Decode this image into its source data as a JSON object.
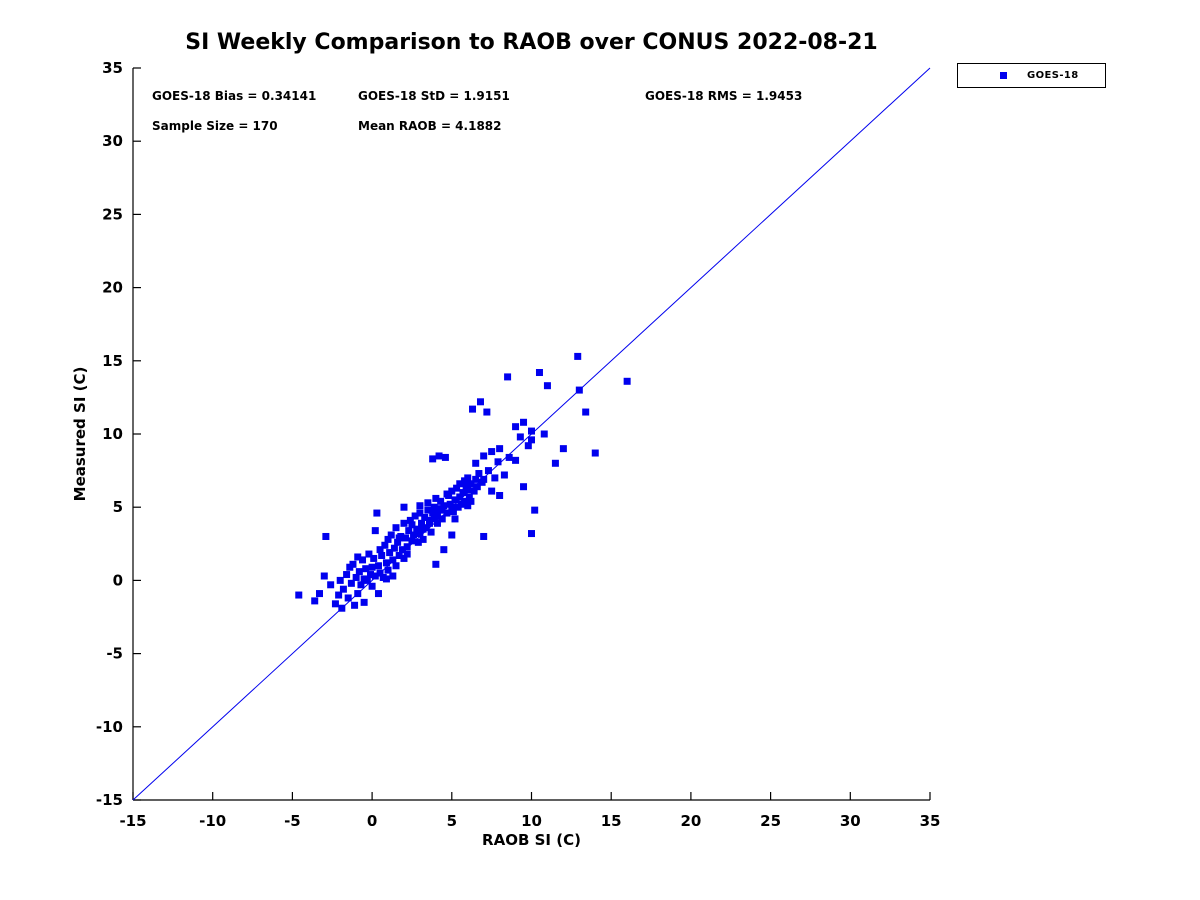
{
  "chart_data": {
    "type": "scatter",
    "title": "SI Weekly Comparison to RAOB over CONUS 2022-08-21",
    "xlabel": "RAOB SI (C)",
    "ylabel": "Measured SI (C)",
    "xlim": [
      -15,
      35
    ],
    "ylim": [
      -15,
      35
    ],
    "tick_step": 5,
    "grid": false,
    "axis_color": "#000000",
    "annotations": {
      "row1": [
        "GOES-18 Bias = 0.34141",
        "GOES-18 StD = 1.9151",
        "GOES-18 RMS = 1.9453"
      ],
      "row2": [
        "Sample Size = 170",
        "Mean RAOB = 4.1882"
      ]
    },
    "stats": {
      "bias": 0.34141,
      "std": 1.9151,
      "rms": 1.9453,
      "sample_size": 170,
      "mean_raob": 4.1882
    },
    "legend": {
      "position": "top-right-outside",
      "entries": [
        {
          "label": "GOES-18",
          "marker": "square",
          "color": "#0000EE"
        }
      ]
    },
    "reference_line": {
      "from": [
        -15,
        -15
      ],
      "to": [
        35,
        35
      ],
      "color": "#0000EE"
    },
    "series": [
      {
        "name": "GOES-18",
        "marker": "square",
        "color": "#0000EE",
        "points": [
          [
            -4.6,
            -1.0
          ],
          [
            -3.6,
            -1.4
          ],
          [
            -3.3,
            -0.9
          ],
          [
            -3.0,
            0.3
          ],
          [
            -2.9,
            3.0
          ],
          [
            -2.6,
            -0.3
          ],
          [
            -2.3,
            -1.6
          ],
          [
            -2.1,
            -1.0
          ],
          [
            -2.0,
            0.0
          ],
          [
            -1.9,
            -1.9
          ],
          [
            -1.8,
            -0.6
          ],
          [
            -1.6,
            0.4
          ],
          [
            -1.5,
            -1.2
          ],
          [
            -1.4,
            0.9
          ],
          [
            -1.3,
            -0.2
          ],
          [
            -1.2,
            1.1
          ],
          [
            -1.1,
            -1.7
          ],
          [
            -1.0,
            0.2
          ],
          [
            -0.9,
            -0.9
          ],
          [
            -0.9,
            1.6
          ],
          [
            -0.8,
            0.6
          ],
          [
            -0.7,
            -0.3
          ],
          [
            -0.6,
            1.4
          ],
          [
            -0.5,
            0.1
          ],
          [
            -0.5,
            -1.5
          ],
          [
            -0.4,
            0.8
          ],
          [
            -0.3,
            0.0
          ],
          [
            -0.2,
            1.8
          ],
          [
            -0.1,
            0.4
          ],
          [
            0.0,
            0.9
          ],
          [
            0.0,
            -0.4
          ],
          [
            0.1,
            1.5
          ],
          [
            0.2,
            0.3
          ],
          [
            0.2,
            3.4
          ],
          [
            0.3,
            4.6
          ],
          [
            0.4,
            1.0
          ],
          [
            0.4,
            -0.9
          ],
          [
            0.5,
            0.5
          ],
          [
            0.5,
            2.1
          ],
          [
            0.6,
            1.7
          ],
          [
            0.7,
            0.2
          ],
          [
            0.8,
            2.4
          ],
          [
            0.9,
            1.2
          ],
          [
            0.9,
            0.1
          ],
          [
            1.0,
            0.7
          ],
          [
            1.0,
            2.8
          ],
          [
            1.1,
            1.9
          ],
          [
            1.2,
            3.1
          ],
          [
            1.3,
            1.4
          ],
          [
            1.3,
            0.3
          ],
          [
            1.4,
            2.2
          ],
          [
            1.5,
            1.0
          ],
          [
            1.5,
            3.6
          ],
          [
            1.6,
            2.6
          ],
          [
            1.7,
            1.7
          ],
          [
            1.7,
            2.9
          ],
          [
            1.8,
            3.0
          ],
          [
            1.9,
            2.1
          ],
          [
            2.0,
            1.5
          ],
          [
            2.0,
            3.9
          ],
          [
            2.0,
            5.0
          ],
          [
            2.1,
            2.9
          ],
          [
            2.2,
            2.3
          ],
          [
            2.2,
            1.8
          ],
          [
            2.3,
            3.4
          ],
          [
            2.4,
            4.1
          ],
          [
            2.5,
            2.7
          ],
          [
            2.5,
            3.8
          ],
          [
            2.6,
            3.1
          ],
          [
            2.7,
            4.4
          ],
          [
            2.8,
            3.5
          ],
          [
            2.9,
            2.6
          ],
          [
            2.9,
            3.3
          ],
          [
            3.0,
            3.2
          ],
          [
            3.0,
            4.6
          ],
          [
            3.0,
            5.1
          ],
          [
            3.1,
            3.9
          ],
          [
            3.2,
            2.8
          ],
          [
            3.2,
            3.5
          ],
          [
            3.3,
            4.3
          ],
          [
            3.4,
            3.6
          ],
          [
            3.5,
            4.8
          ],
          [
            3.5,
            5.3
          ],
          [
            3.6,
            4.1
          ],
          [
            3.6,
            3.9
          ],
          [
            3.7,
            3.3
          ],
          [
            3.8,
            8.3
          ],
          [
            3.8,
            4.6
          ],
          [
            3.9,
            5.0
          ],
          [
            3.9,
            4.2
          ],
          [
            4.0,
            1.1
          ],
          [
            4.0,
            4.4
          ],
          [
            4.0,
            5.6
          ],
          [
            4.1,
            3.9
          ],
          [
            4.1,
            4.5
          ],
          [
            4.2,
            8.5
          ],
          [
            4.2,
            4.9
          ],
          [
            4.3,
            5.4
          ],
          [
            4.4,
            4.2
          ],
          [
            4.4,
            4.8
          ],
          [
            4.5,
            2.1
          ],
          [
            4.5,
            5.1
          ],
          [
            4.6,
            8.4
          ],
          [
            4.7,
            4.6
          ],
          [
            4.7,
            5.9
          ],
          [
            4.8,
            5.8
          ],
          [
            4.9,
            5.2
          ],
          [
            5.0,
            3.1
          ],
          [
            5.0,
            5.0
          ],
          [
            5.0,
            6.1
          ],
          [
            5.1,
            4.7
          ],
          [
            5.2,
            5.5
          ],
          [
            5.2,
            4.2
          ],
          [
            5.3,
            6.3
          ],
          [
            5.4,
            5.0
          ],
          [
            5.5,
            5.7
          ],
          [
            5.5,
            6.6
          ],
          [
            5.6,
            5.2
          ],
          [
            5.7,
            6.0
          ],
          [
            5.8,
            5.4
          ],
          [
            5.8,
            6.8
          ],
          [
            5.9,
            6.4
          ],
          [
            6.0,
            5.1
          ],
          [
            6.0,
            6.2
          ],
          [
            6.0,
            7.0
          ],
          [
            6.1,
            5.7
          ],
          [
            6.2,
            6.6
          ],
          [
            6.2,
            5.4
          ],
          [
            6.3,
            11.7
          ],
          [
            6.4,
            6.1
          ],
          [
            6.5,
            6.9
          ],
          [
            6.5,
            8.0
          ],
          [
            6.6,
            6.4
          ],
          [
            6.7,
            7.3
          ],
          [
            6.8,
            12.2
          ],
          [
            6.9,
            6.7
          ],
          [
            7.0,
            3.0
          ],
          [
            7.0,
            6.9
          ],
          [
            7.0,
            8.5
          ],
          [
            7.2,
            11.5
          ],
          [
            7.3,
            7.5
          ],
          [
            7.5,
            6.1
          ],
          [
            7.5,
            8.8
          ],
          [
            7.7,
            7.0
          ],
          [
            7.9,
            8.1
          ],
          [
            8.0,
            5.8
          ],
          [
            8.0,
            9.0
          ],
          [
            8.3,
            7.2
          ],
          [
            8.5,
            13.9
          ],
          [
            8.6,
            8.4
          ],
          [
            9.0,
            8.2
          ],
          [
            9.0,
            10.5
          ],
          [
            9.3,
            9.8
          ],
          [
            9.5,
            6.4
          ],
          [
            9.5,
            10.8
          ],
          [
            9.8,
            9.2
          ],
          [
            10.0,
            3.2
          ],
          [
            10.0,
            9.6
          ],
          [
            10.0,
            10.2
          ],
          [
            10.2,
            4.8
          ],
          [
            10.5,
            14.2
          ],
          [
            10.8,
            10.0
          ],
          [
            11.0,
            13.3
          ],
          [
            11.5,
            8.0
          ],
          [
            12.0,
            9.0
          ],
          [
            12.9,
            15.3
          ],
          [
            13.0,
            13.0
          ],
          [
            13.4,
            11.5
          ],
          [
            14.0,
            8.7
          ],
          [
            16.0,
            13.6
          ]
        ]
      }
    ]
  }
}
